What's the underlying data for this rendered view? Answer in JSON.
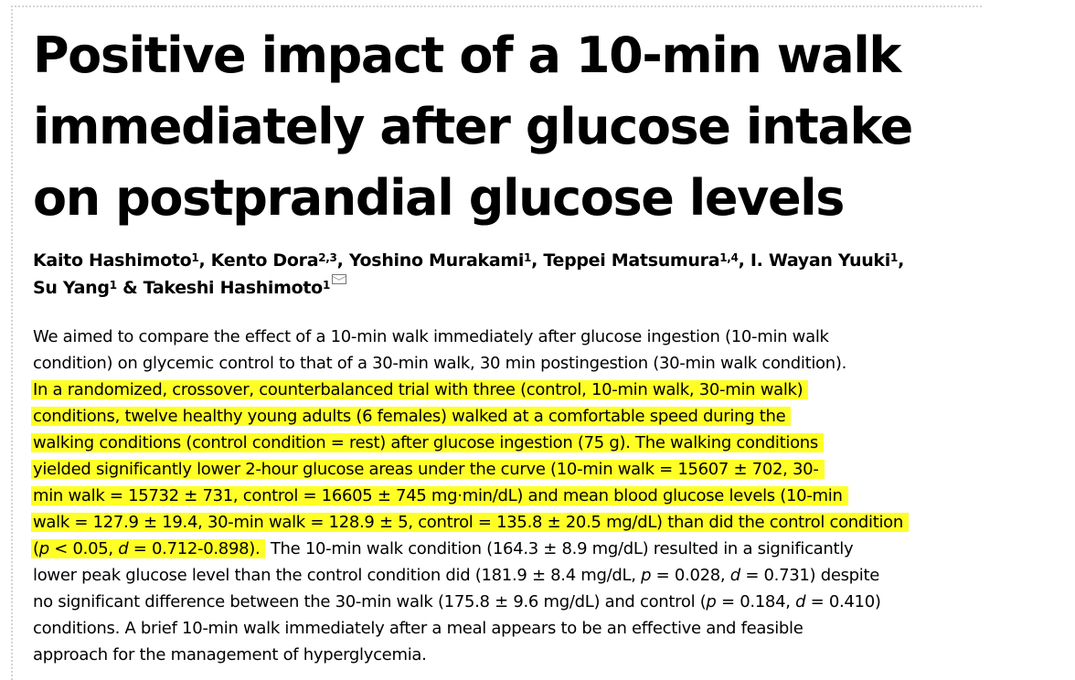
{
  "title": {
    "line1": "Positive impact of a 10-min walk",
    "line2": "immediately after glucose intake",
    "line3": "on postprandial glucose levels"
  },
  "authors": {
    "a1": "Kaito Hashimoto",
    "a1_sup": "1",
    "a2": ", Kento Dora",
    "a2_sup": "2,3",
    "a3": ", Yoshino Murakami",
    "a3_sup": "1",
    "a4": ", Teppei Matsumura",
    "a4_sup": "1,4",
    "a5": ", I. Wayan Yuuki",
    "a5_sup": "1",
    "a5_tail": ",",
    "a6": "Su Yang",
    "a6_sup": "1",
    "a7": " & Takeshi Hashimoto",
    "a7_sup": "1",
    "mail_icon": "envelope-icon"
  },
  "abstract": {
    "l1": "We aimed to compare the effect of a 10-min walk immediately after glucose ingestion (10-min walk",
    "l2": "condition) on glycemic control to that of a 30-min walk, 30 min postingestion (30-min walk condition).",
    "l3": "In a randomized, crossover, counterbalanced trial with three (control, 10-min walk, 30-min walk)",
    "l4": "conditions, twelve healthy young adults (6 females) walked at a comfortable speed during the",
    "l5": "walking conditions (control condition = rest) after glucose ingestion (75 g). The walking conditions",
    "l6": "yielded significantly lower 2-hour glucose areas under the curve (10-min walk = 15607 ± 702, 30-",
    "l7": "min walk = 15732 ± 731, control = 16605 ± 745 mg·min/dL) and mean blood glucose levels (10-min",
    "l8": "walk = 127.9 ± 19.4, 30-min walk = 128.9 ± 5, control = 135.8 ± 20.5 mg/dL) than did the control condition",
    "l9_hl_a": "(",
    "l9_p": "p",
    "l9_hl_b": " < 0.05,  ",
    "l9_d": "d",
    "l9_hl_c": " = 0.712-0.898).",
    "l9_rest": " The 10-min walk condition (164.3 ± 8.9 mg/dL) resulted in a significantly",
    "l10_a": "lower peak glucose level than the control condition did (181.9 ± 8.4 mg/dL, ",
    "l10_p": "p",
    "l10_b": " = 0.028, ",
    "l10_d": "d",
    "l10_c": " = 0.731) despite",
    "l11_a": "no significant difference between the 30-min walk (175.8 ± 9.6 mg/dL) and control (",
    "l11_p": "p",
    "l11_b": " = 0.184, ",
    "l11_d": "d",
    "l11_c": " = 0.410)",
    "l12": "conditions. A brief 10-min walk immediately after a meal appears to be an effective and feasible",
    "l13": "approach for the management of hyperglycemia.",
    "highlight_color": "#ffff26"
  }
}
